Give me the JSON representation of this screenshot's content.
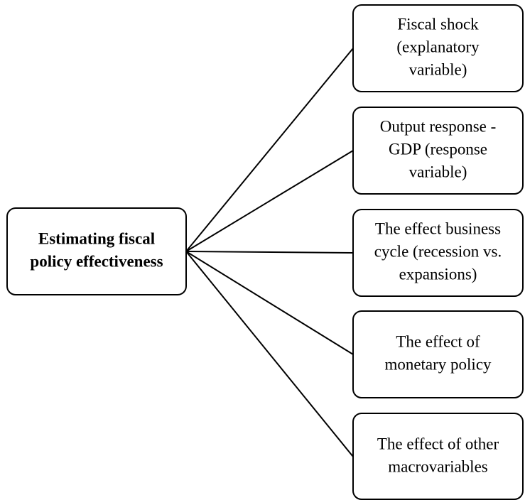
{
  "root": {
    "label": [
      "Estimating fiscal",
      "policy effectiveness"
    ]
  },
  "nodes": [
    {
      "label": [
        "Fiscal shock",
        "(explanatory",
        "variable)"
      ]
    },
    {
      "label": [
        "Output response -",
        "GDP (response",
        "variable)"
      ]
    },
    {
      "label": [
        "The effect business",
        "cycle (recession vs.",
        "expansions)"
      ]
    },
    {
      "label": [
        "The effect of",
        "monetary policy"
      ]
    },
    {
      "label": [
        "The effect of other",
        "macrovariables"
      ]
    }
  ]
}
